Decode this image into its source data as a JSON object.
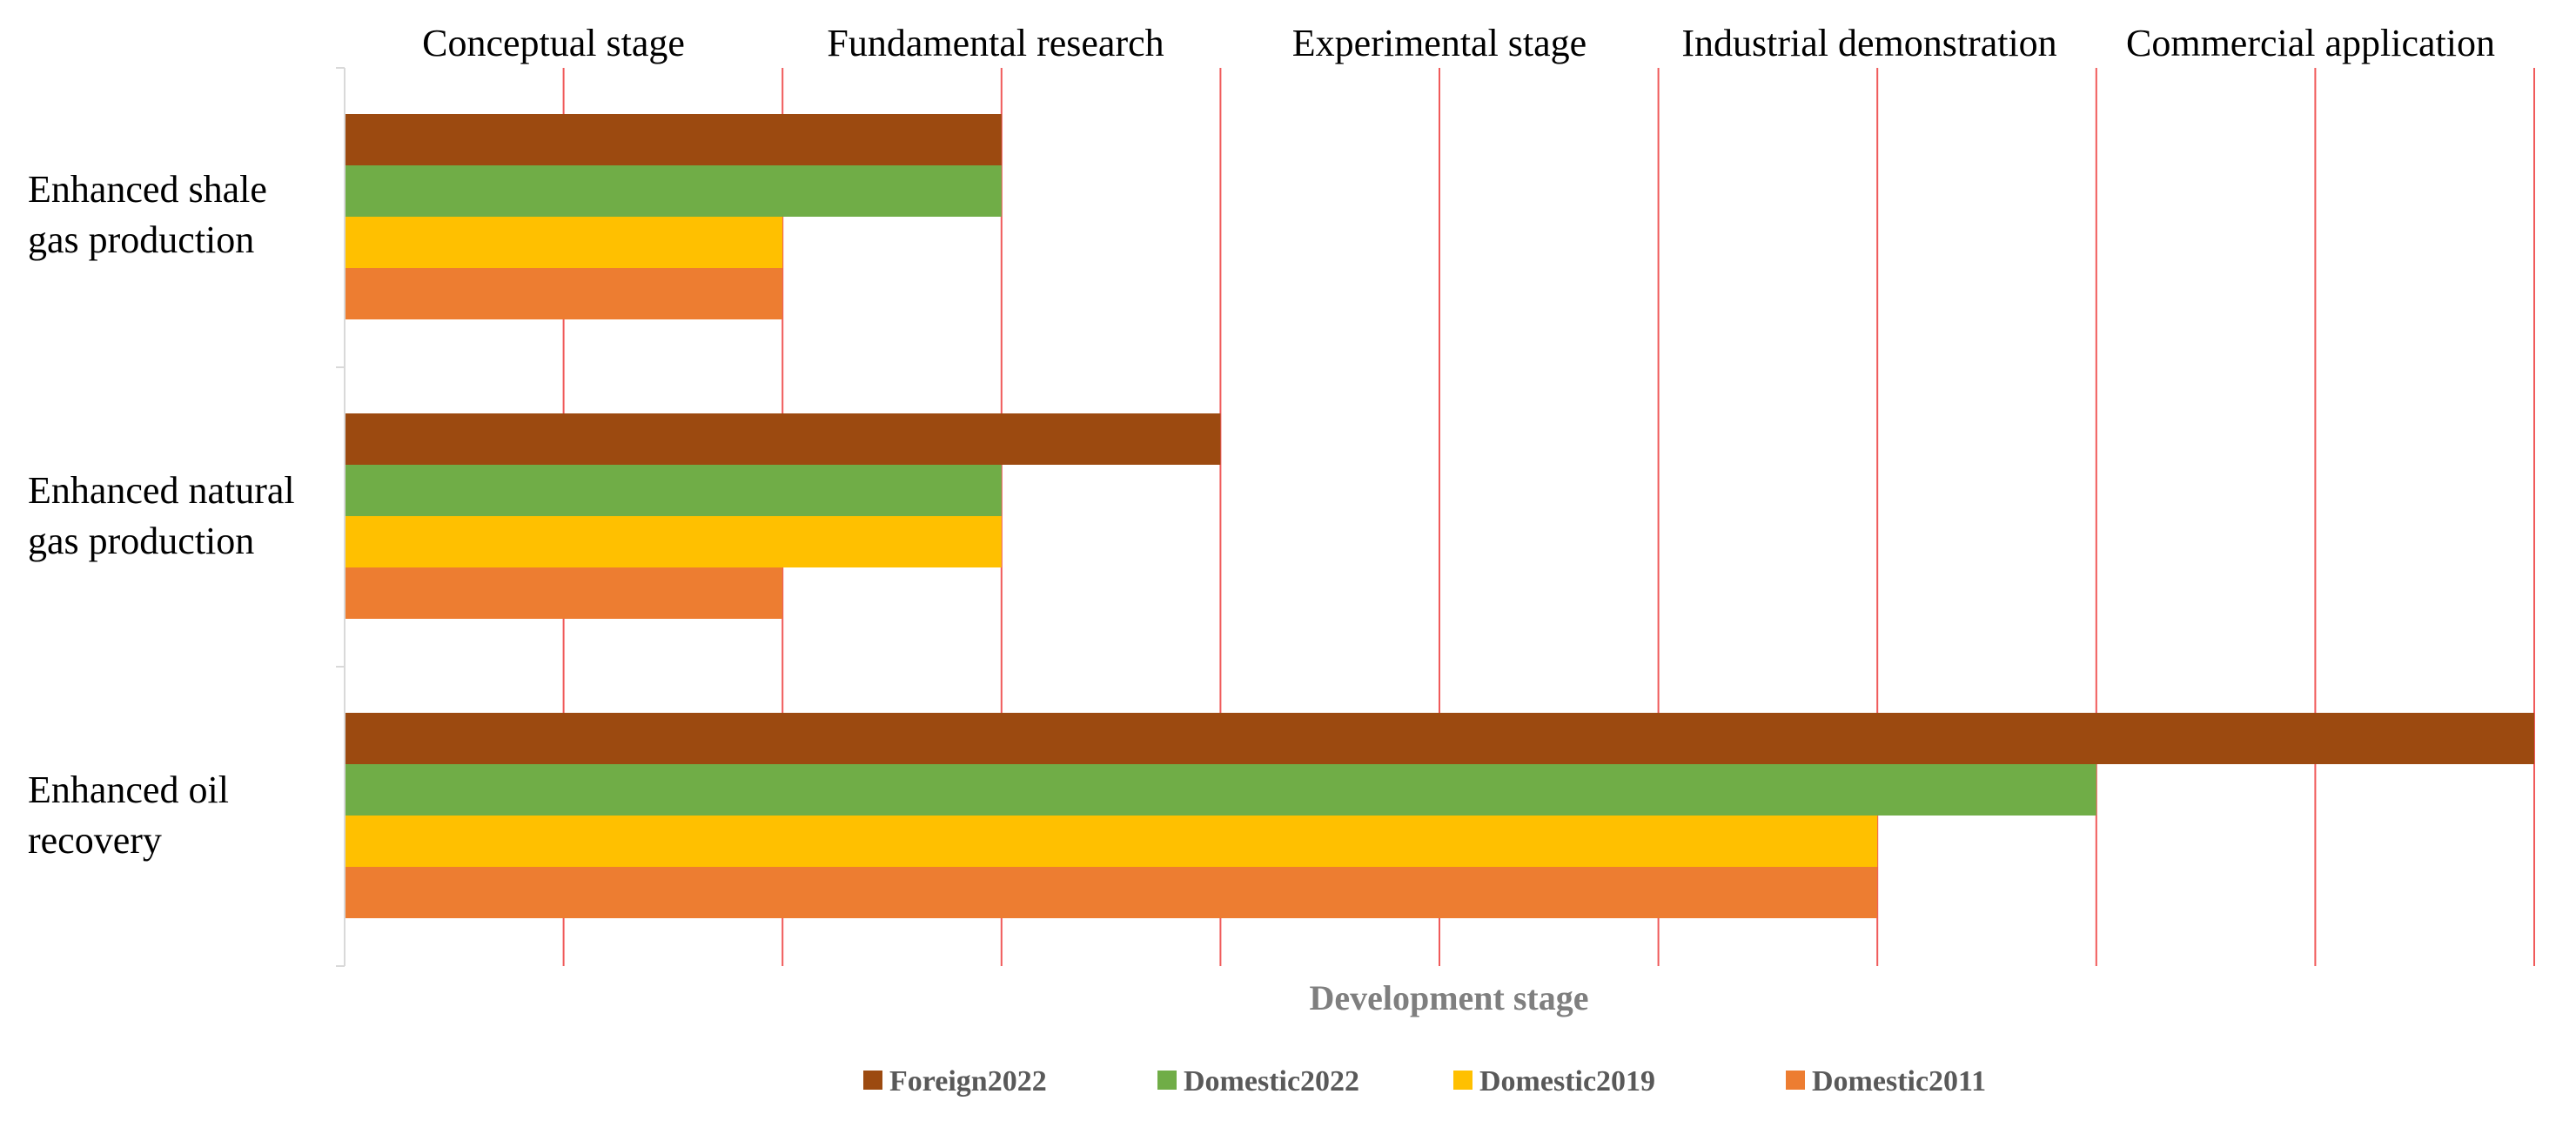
{
  "chart_data": {
    "type": "bar",
    "orientation": "horizontal",
    "title": "",
    "xlabel": "Development stage",
    "ylabel": "",
    "xlim": [
      0,
      10
    ],
    "grid": true,
    "legend_position": "bottom",
    "stage_labels": [
      "Conceptual stage",
      "Fundamental research",
      "Experimental stage",
      "Industrial demonstration",
      "Commercial application"
    ],
    "categories": [
      [
        "Enhanced shale",
        "gas production"
      ],
      [
        "Enhanced natural",
        "gas production"
      ],
      [
        "Enhanced oil",
        "recovery"
      ]
    ],
    "series": [
      {
        "name": "Foreign2022",
        "color": "#9C4A10",
        "values": [
          3,
          4,
          10
        ]
      },
      {
        "name": "Domestic2022",
        "color": "#70AD47",
        "values": [
          3,
          3,
          8
        ]
      },
      {
        "name": "Domestic2019",
        "color": "#FFC000",
        "values": [
          2,
          3,
          7
        ]
      },
      {
        "name": "Domestic2011",
        "color": "#ED7D31",
        "values": [
          2,
          2,
          7
        ]
      }
    ],
    "gridline_color": "#F05A5A"
  }
}
